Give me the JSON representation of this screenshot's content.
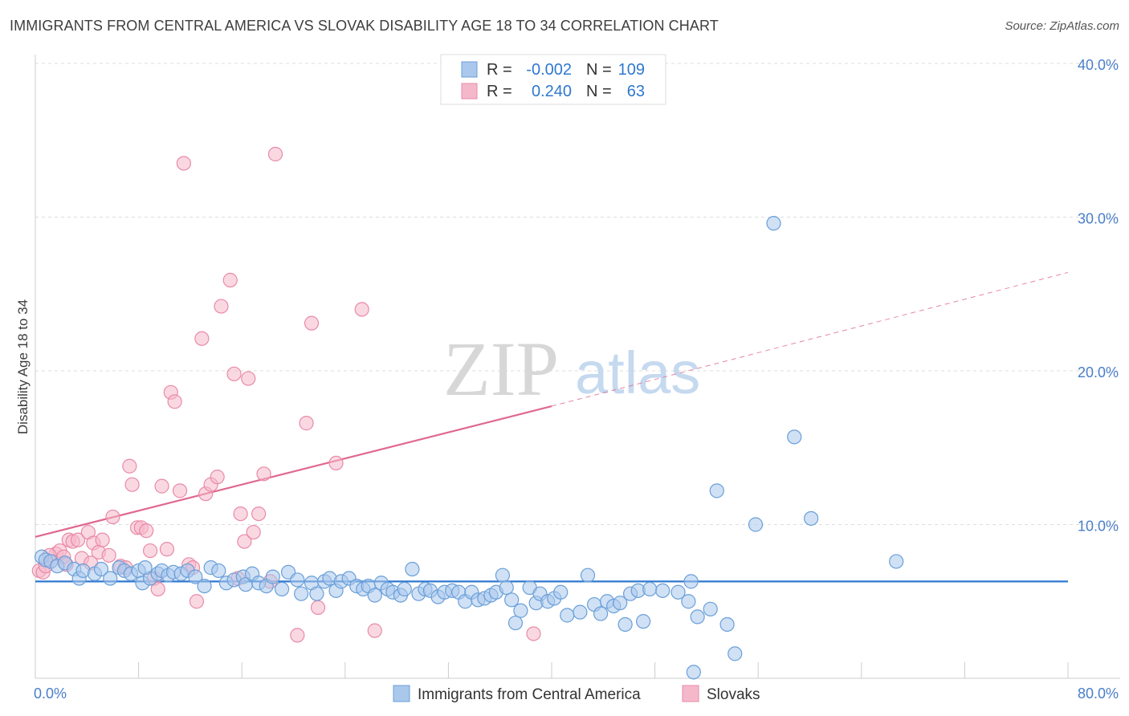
{
  "header": {
    "title": "IMMIGRANTS FROM CENTRAL AMERICA VS SLOVAK DISABILITY AGE 18 TO 34 CORRELATION CHART",
    "source": "Source: ZipAtlas.com"
  },
  "watermark": {
    "zip": "ZIP",
    "atlas": "atlas"
  },
  "colors": {
    "blue_fill": "#a9c8ec",
    "blue_stroke": "#6a9fd8",
    "blue_line": "#2f78d0",
    "pink_fill": "#f5b8cb",
    "pink_stroke": "#e98aa8",
    "pink_line": "#e0688f",
    "grid": "#dddddd",
    "tick_label": "#4a7ec9"
  },
  "legend": {
    "rows": [
      {
        "r_label": "R =",
        "r_value": "-0.002",
        "n_label": "N =",
        "n_value": "109"
      },
      {
        "r_label": "R =",
        "r_value": "0.240",
        "n_label": "N =",
        "n_value": "63"
      }
    ]
  },
  "chart_data": {
    "type": "scatter",
    "title": "IMMIGRANTS FROM CENTRAL AMERICA VS SLOVAK DISABILITY AGE 18 TO 34 CORRELATION CHART",
    "xlabel": "",
    "ylabel": "Disability Age 18 to 34",
    "xlim": [
      0,
      80
    ],
    "ylim": [
      0,
      40
    ],
    "x_ticks": [
      "0.0%",
      "80.0%"
    ],
    "y_ticks": [
      "10.0%",
      "20.0%",
      "30.0%",
      "40.0%"
    ],
    "y_tick_values": [
      10,
      20,
      30,
      40
    ],
    "grid": true,
    "legend_position": "top-center",
    "series": [
      {
        "name": "Immigrants from Central America",
        "color": "#a9c8ec",
        "trend": {
          "x": [
            0,
            80
          ],
          "y": [
            6.3,
            6.3
          ],
          "style": "solid"
        },
        "points": [
          [
            0.5,
            7.9
          ],
          [
            0.8,
            7.7
          ],
          [
            1.2,
            7.6
          ],
          [
            1.7,
            7.3
          ],
          [
            2.3,
            7.5
          ],
          [
            3.0,
            7.1
          ],
          [
            3.4,
            6.5
          ],
          [
            3.7,
            7.0
          ],
          [
            4.6,
            6.8
          ],
          [
            5.1,
            7.1
          ],
          [
            5.8,
            6.5
          ],
          [
            6.5,
            7.2
          ],
          [
            6.9,
            7.0
          ],
          [
            7.4,
            6.8
          ],
          [
            8.0,
            7.0
          ],
          [
            8.3,
            6.2
          ],
          [
            8.9,
            6.5
          ],
          [
            9.5,
            6.8
          ],
          [
            9.8,
            7.0
          ],
          [
            10.3,
            6.7
          ],
          [
            10.7,
            6.9
          ],
          [
            11.3,
            6.8
          ],
          [
            11.8,
            7.0
          ],
          [
            12.4,
            6.6
          ],
          [
            13.1,
            6.0
          ],
          [
            13.6,
            7.2
          ],
          [
            14.2,
            7.0
          ],
          [
            14.8,
            6.2
          ],
          [
            15.4,
            6.4
          ],
          [
            16.1,
            6.6
          ],
          [
            16.3,
            6.1
          ],
          [
            16.8,
            6.8
          ],
          [
            17.3,
            6.2
          ],
          [
            17.9,
            6.0
          ],
          [
            18.4,
            6.6
          ],
          [
            19.1,
            5.8
          ],
          [
            19.6,
            6.9
          ],
          [
            20.3,
            6.4
          ],
          [
            20.6,
            5.5
          ],
          [
            21.4,
            6.2
          ],
          [
            21.8,
            5.5
          ],
          [
            22.4,
            6.3
          ],
          [
            22.8,
            6.5
          ],
          [
            23.3,
            5.7
          ],
          [
            23.7,
            6.3
          ],
          [
            24.3,
            6.5
          ],
          [
            24.9,
            6.0
          ],
          [
            25.4,
            5.8
          ],
          [
            25.8,
            6.0
          ],
          [
            26.3,
            5.4
          ],
          [
            26.8,
            6.2
          ],
          [
            27.3,
            5.8
          ],
          [
            27.7,
            5.6
          ],
          [
            28.3,
            5.4
          ],
          [
            28.6,
            5.8
          ],
          [
            29.2,
            7.1
          ],
          [
            29.7,
            5.5
          ],
          [
            30.2,
            5.8
          ],
          [
            30.6,
            5.7
          ],
          [
            31.2,
            5.3
          ],
          [
            31.7,
            5.6
          ],
          [
            32.3,
            5.7
          ],
          [
            32.8,
            5.6
          ],
          [
            33.3,
            5.0
          ],
          [
            33.8,
            5.6
          ],
          [
            34.3,
            5.1
          ],
          [
            34.8,
            5.2
          ],
          [
            35.3,
            5.4
          ],
          [
            35.7,
            5.6
          ],
          [
            36.2,
            6.7
          ],
          [
            36.5,
            5.9
          ],
          [
            36.9,
            5.1
          ],
          [
            37.2,
            3.6
          ],
          [
            37.6,
            4.4
          ],
          [
            38.3,
            5.9
          ],
          [
            38.8,
            4.9
          ],
          [
            39.1,
            5.5
          ],
          [
            39.7,
            5.0
          ],
          [
            40.2,
            5.2
          ],
          [
            40.7,
            5.6
          ],
          [
            41.2,
            4.1
          ],
          [
            42.2,
            4.3
          ],
          [
            42.8,
            6.7
          ],
          [
            43.3,
            4.8
          ],
          [
            43.8,
            4.2
          ],
          [
            44.3,
            5.0
          ],
          [
            44.8,
            4.7
          ],
          [
            45.3,
            4.9
          ],
          [
            45.7,
            3.5
          ],
          [
            46.1,
            5.5
          ],
          [
            46.7,
            5.7
          ],
          [
            47.1,
            3.7
          ],
          [
            47.6,
            5.8
          ],
          [
            48.6,
            5.7
          ],
          [
            49.8,
            5.6
          ],
          [
            50.6,
            5.0
          ],
          [
            50.8,
            6.3
          ],
          [
            51.3,
            4.0
          ],
          [
            52.3,
            4.5
          ],
          [
            52.8,
            12.2
          ],
          [
            53.6,
            3.5
          ],
          [
            55.8,
            10.0
          ],
          [
            57.2,
            29.6
          ],
          [
            58.8,
            15.7
          ],
          [
            60.1,
            10.4
          ],
          [
            66.7,
            7.6
          ],
          [
            51.0,
            0.4
          ],
          [
            54.2,
            1.6
          ],
          [
            8.5,
            7.2
          ]
        ]
      },
      {
        "name": "Slovaks",
        "color": "#f5b8cb",
        "trend": {
          "x": [
            0,
            40,
            80
          ],
          "y": [
            9.2,
            17.7,
            26.4
          ],
          "style": "solid-then-dashed",
          "solid_until": 40
        },
        "points": [
          [
            0.3,
            7.0
          ],
          [
            0.6,
            6.9
          ],
          [
            0.8,
            7.3
          ],
          [
            1.2,
            7.6
          ],
          [
            1.6,
            8.1
          ],
          [
            1.9,
            8.3
          ],
          [
            2.2,
            7.9
          ],
          [
            2.6,
            9.0
          ],
          [
            2.9,
            8.9
          ],
          [
            3.3,
            9.0
          ],
          [
            3.6,
            7.8
          ],
          [
            4.1,
            9.5
          ],
          [
            4.5,
            8.8
          ],
          [
            4.9,
            8.2
          ],
          [
            5.2,
            9.0
          ],
          [
            5.7,
            8.0
          ],
          [
            6.0,
            10.5
          ],
          [
            6.6,
            7.3
          ],
          [
            7.0,
            7.2
          ],
          [
            7.3,
            13.8
          ],
          [
            7.5,
            12.6
          ],
          [
            7.9,
            9.8
          ],
          [
            8.2,
            9.8
          ],
          [
            8.6,
            9.6
          ],
          [
            8.9,
            8.3
          ],
          [
            9.2,
            6.5
          ],
          [
            9.5,
            5.8
          ],
          [
            9.8,
            12.5
          ],
          [
            10.2,
            8.4
          ],
          [
            10.5,
            18.6
          ],
          [
            10.8,
            18.0
          ],
          [
            11.2,
            12.2
          ],
          [
            11.5,
            33.5
          ],
          [
            11.9,
            7.4
          ],
          [
            12.2,
            7.2
          ],
          [
            12.5,
            5.0
          ],
          [
            12.9,
            22.1
          ],
          [
            13.2,
            12.0
          ],
          [
            13.6,
            12.6
          ],
          [
            14.1,
            13.1
          ],
          [
            14.4,
            24.2
          ],
          [
            15.1,
            25.9
          ],
          [
            15.4,
            19.8
          ],
          [
            15.7,
            6.5
          ],
          [
            15.9,
            10.7
          ],
          [
            16.2,
            8.9
          ],
          [
            16.5,
            19.5
          ],
          [
            16.9,
            9.5
          ],
          [
            17.3,
            10.7
          ],
          [
            17.7,
            13.3
          ],
          [
            18.2,
            6.3
          ],
          [
            18.6,
            34.1
          ],
          [
            20.3,
            2.8
          ],
          [
            21.0,
            16.6
          ],
          [
            21.4,
            23.1
          ],
          [
            21.9,
            4.6
          ],
          [
            23.3,
            14.0
          ],
          [
            25.3,
            24.0
          ],
          [
            26.3,
            3.1
          ],
          [
            38.6,
            2.9
          ],
          [
            4.3,
            7.5
          ],
          [
            1.1,
            8.0
          ],
          [
            2.4,
            7.4
          ]
        ]
      }
    ]
  },
  "bottom_legend": [
    {
      "label": "Immigrants from Central America"
    },
    {
      "label": "Slovaks"
    }
  ]
}
